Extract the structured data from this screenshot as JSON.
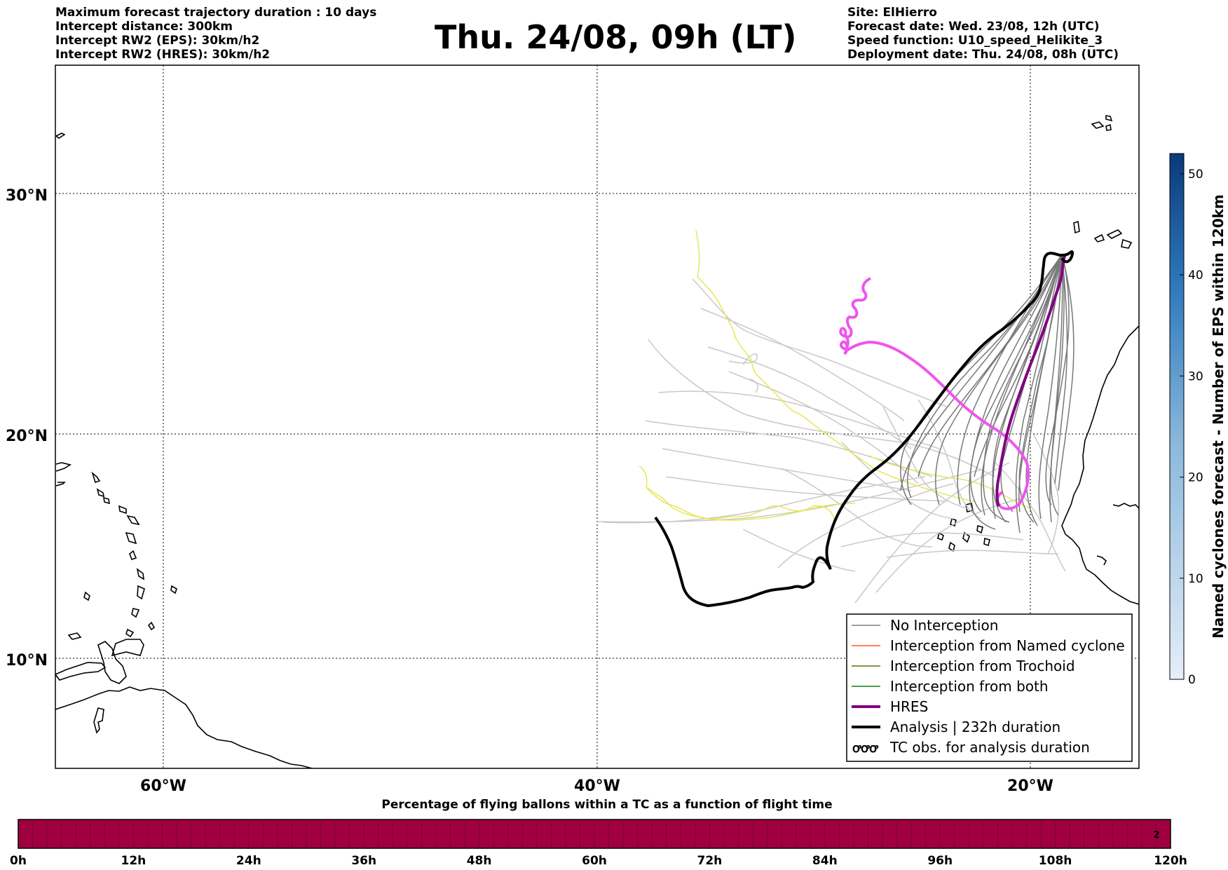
{
  "header": {
    "left": [
      "Maximum forecast trajectory duration : 10 days",
      "Intercept distance: 300km",
      "Intercept RW2 (EPS):  30km/h2",
      "Intercept RW2 (HRES): 30km/h2"
    ],
    "title": "Thu. 24/08, 09h (LT)",
    "right": [
      "Site: ElHierro",
      "Forecast date: Wed. 23/08, 12h (UTC)",
      "Speed function: U10_speed_Helikite_3",
      "Deployment date: Thu. 24/08, 08h (UTC)"
    ]
  },
  "map": {
    "lat_labels": [
      "30°N",
      "20°N",
      "10°N"
    ],
    "lon_labels": [
      "60°W",
      "40°W",
      "20°W"
    ]
  },
  "legend": [
    {
      "label": "No Interception",
      "color": "#808080",
      "icon": "thin-line"
    },
    {
      "label": "Interception from Named cyclone",
      "color": "#ff5a1e",
      "icon": "thin-line"
    },
    {
      "label": "Interception from Trochoid",
      "color": "#6b6b10",
      "icon": "thin-line"
    },
    {
      "label": "Interception from both",
      "color": "#108010",
      "icon": "thin-line"
    },
    {
      "label": "HRES",
      "color": "#800080",
      "icon": "thick-line"
    },
    {
      "label": "Analysis | 232h duration",
      "color": "#000000",
      "icon": "thick-line"
    },
    {
      "label": "TC obs. for analysis duration",
      "color": "#000000",
      "icon": "cyclone-symbols"
    }
  ],
  "colorbar": {
    "label": "Named cyclones forecast - Number of EPS within 120km",
    "ticks": [
      "0",
      "10",
      "20",
      "30",
      "40",
      "50"
    ],
    "colors": [
      "#e6eef8",
      "#0a3a7a"
    ]
  },
  "bottom_bar": {
    "title": "Percentage of flying ballons within a TC as a function of flight time",
    "ticks": [
      "0h",
      "12h",
      "24h",
      "36h",
      "48h",
      "60h",
      "72h",
      "84h",
      "96h",
      "108h",
      "120h"
    ],
    "fill_color": "#a00040",
    "last_cell_value": "2"
  }
}
